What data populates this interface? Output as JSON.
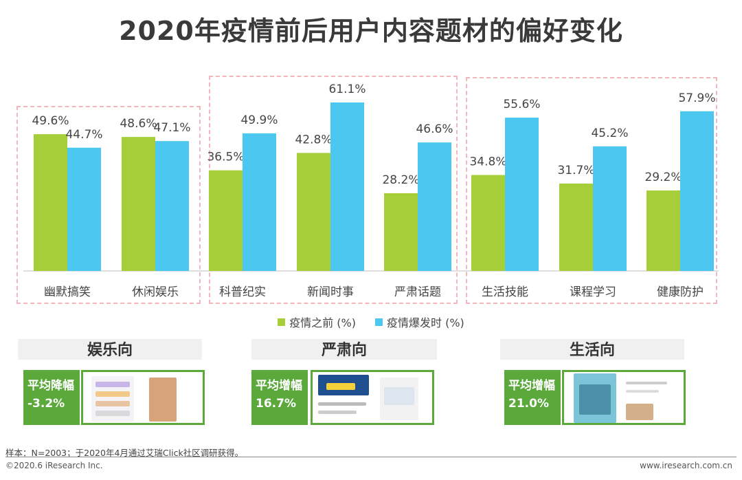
{
  "title": "2020年疫情前后用户内容题材的偏好变化",
  "chart_data": {
    "type": "bar",
    "categories": [
      "幽默搞笑",
      "休闲娱乐",
      "科普纪实",
      "新闻时事",
      "严肃话题",
      "生活技能",
      "课程学习",
      "健康防护"
    ],
    "series": [
      {
        "name": "疫情之前 (%)",
        "color": "#a6ce39",
        "values": [
          49.6,
          48.6,
          36.5,
          42.8,
          28.2,
          34.8,
          31.7,
          29.2
        ]
      },
      {
        "name": "疫情爆发时 (%)",
        "color": "#4cc8f0",
        "values": [
          44.7,
          47.1,
          49.9,
          61.1,
          46.6,
          55.6,
          45.2,
          57.9
        ]
      }
    ],
    "value_suffix": "%",
    "ylim": [
      0,
      65
    ],
    "legend_position": "bottom"
  },
  "legend": {
    "before_label": "疫情之前 (%)",
    "after_label": "疫情爆发时 (%)",
    "before_color": "#a6ce39",
    "after_color": "#4cc8f0"
  },
  "groups": [
    {
      "header": "娱乐向",
      "stat_label": "平均降幅",
      "stat_value": "-3.2%"
    },
    {
      "header": "严肃向",
      "stat_label": "平均增幅",
      "stat_value": "16.7%"
    },
    {
      "header": "生活向",
      "stat_label": "平均增幅",
      "stat_value": "21.0%"
    }
  ],
  "footnote": "样本：N=2003；于2020年4月通过艾瑞Click社区调研获得。",
  "footer_left": "©2020.6 iResearch Inc.",
  "footer_right": "www.iresearch.com.cn"
}
